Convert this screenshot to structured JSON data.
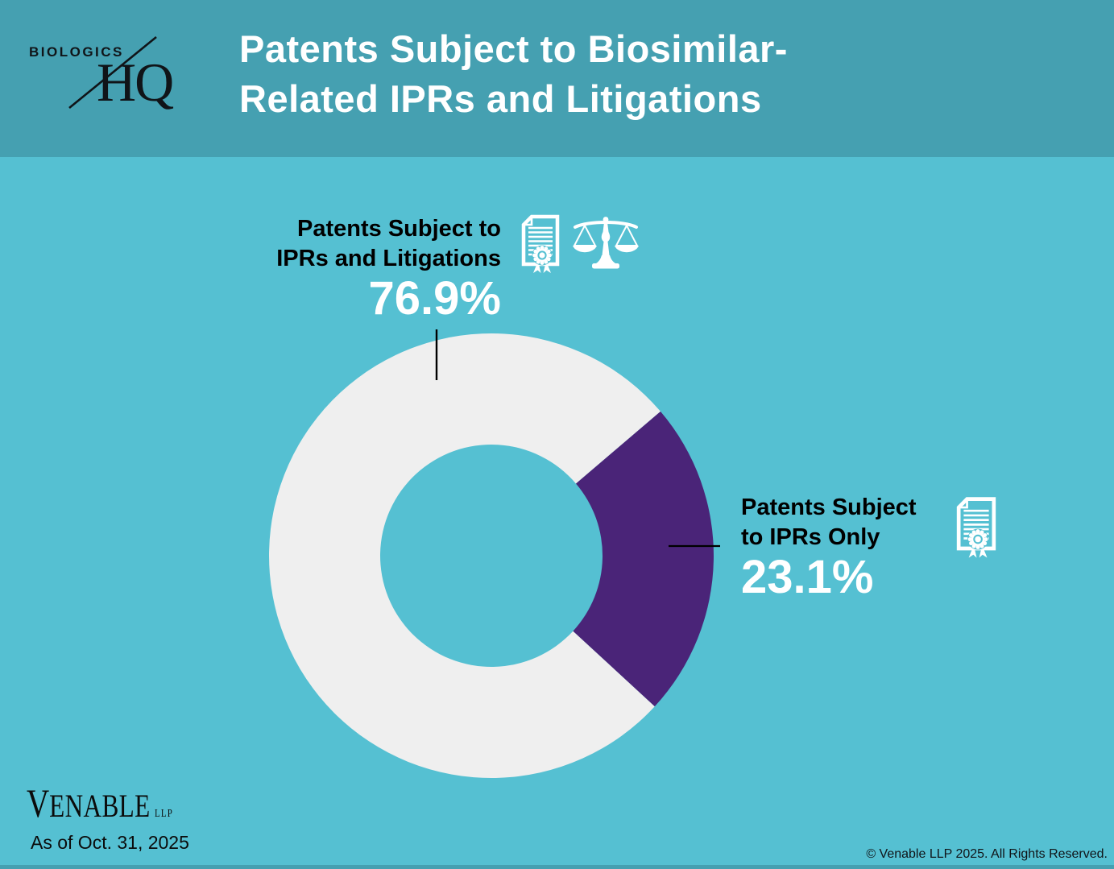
{
  "header": {
    "logo_top": "BIOLOGICS",
    "logo_bottom": "HQ",
    "title_line1": "Patents Subject to Biosimilar-",
    "title_line2": "Related IPRs and Litigations"
  },
  "chart_data": {
    "type": "pie",
    "subtype": "donut",
    "title": "Patents Subject to Biosimilar-Related IPRs and Litigations",
    "slices": [
      {
        "label": "Patents Subject to IPRs and Litigations",
        "value": 76.9,
        "display": "76.9%",
        "color": "#efefef"
      },
      {
        "label": "Patents Subject to IPRs Only",
        "value": 23.1,
        "display": "23.1%",
        "color": "#4a2478"
      }
    ],
    "rotation_deg": 132.7,
    "inner_radius_ratio": 0.5,
    "legend_position": "callout-labels",
    "background_color": "#55c0d2"
  },
  "callouts": {
    "left": {
      "line1": "Patents Subject to",
      "line2": "IPRs and Litigations",
      "pct": "76.9%"
    },
    "right": {
      "line1": "Patents Subject",
      "line2": "to IPRs Only",
      "pct": "23.1%"
    }
  },
  "icons": {
    "certificate": "certificate-icon",
    "scales": "scales-of-justice-icon"
  },
  "footer": {
    "brand_initial": "V",
    "brand_rest": "ENABLE",
    "brand_suffix": "LLP",
    "as_of": "As of Oct. 31, 2025",
    "copyright": "© Venable LLP 2025. All Rights Reserved."
  },
  "colors": {
    "header_bg": "#45a0b1",
    "body_bg": "#55c0d2",
    "slice_major": "#efefef",
    "slice_minor": "#4a2478",
    "title_text": "#ffffff",
    "label_text": "#000000",
    "pct_text": "#ffffff"
  }
}
